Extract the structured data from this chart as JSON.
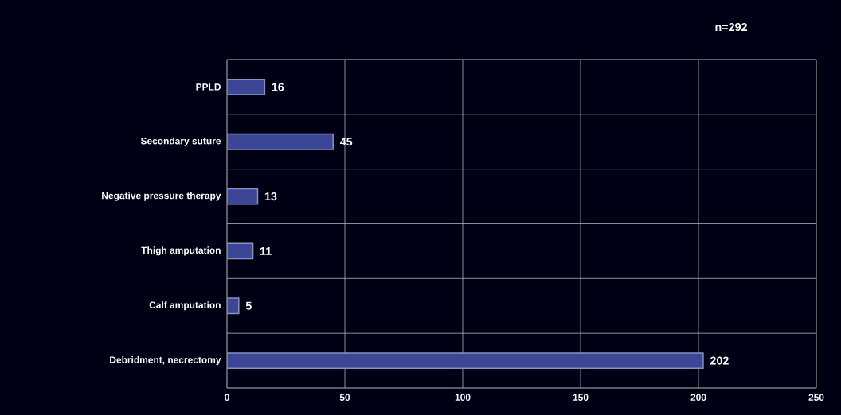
{
  "chart_data": {
    "type": "bar",
    "orientation": "horizontal",
    "categories": [
      "PPLD",
      "Secondary suture",
      "Negative pressure therapy",
      "Thigh amputation",
      "Calf amputation",
      "Debridment, necrectomy"
    ],
    "values": [
      16,
      45,
      13,
      11,
      5,
      202
    ],
    "color": "#3b4796",
    "xlim": [
      0,
      250
    ],
    "xticks": [
      0,
      50,
      100,
      150,
      200,
      250
    ],
    "grid": true,
    "data_labels": true,
    "annotations": [
      "n=292"
    ]
  }
}
